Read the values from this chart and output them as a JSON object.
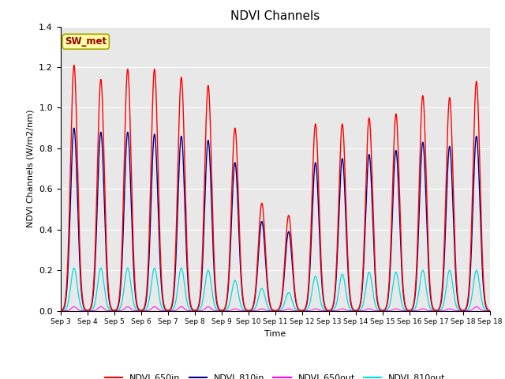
{
  "title": "NDVI Channels",
  "xlabel": "Time",
  "ylabel": "NDVI Channels (W/m2/nm)",
  "ylim": [
    0.0,
    1.4
  ],
  "annotation_text": "SW_met",
  "annotation_bg": "#FFFFAA",
  "annotation_text_color": "#990000",
  "bg_color": "#E8E8E8",
  "lines": {
    "NDVI_650in": {
      "color": "#FF0000",
      "lw": 1.0
    },
    "NDVI_810in": {
      "color": "#00008B",
      "lw": 1.0
    },
    "NDVI_650out": {
      "color": "#FF00FF",
      "lw": 0.7
    },
    "NDVI_810out": {
      "color": "#00DDDD",
      "lw": 0.9
    }
  },
  "day_peaks_650in": [
    1.21,
    1.14,
    1.19,
    1.19,
    1.15,
    1.11,
    0.9,
    0.53,
    0.47,
    0.92,
    0.92,
    0.95,
    0.97,
    1.06,
    1.05,
    1.13
  ],
  "day_peaks_810in": [
    0.9,
    0.88,
    0.88,
    0.87,
    0.86,
    0.84,
    0.73,
    0.44,
    0.39,
    0.73,
    0.75,
    0.77,
    0.79,
    0.83,
    0.81,
    0.86
  ],
  "day_peaks_650out": [
    0.02,
    0.02,
    0.02,
    0.02,
    0.02,
    0.02,
    0.01,
    0.01,
    0.01,
    0.01,
    0.01,
    0.01,
    0.01,
    0.01,
    0.01,
    0.02
  ],
  "day_peaks_810out": [
    0.21,
    0.21,
    0.21,
    0.21,
    0.21,
    0.2,
    0.15,
    0.11,
    0.09,
    0.17,
    0.18,
    0.19,
    0.19,
    0.2,
    0.2,
    0.2
  ],
  "xtick_labels": [
    "Sep 3",
    "Sep 4",
    "Sep 5",
    "Sep 6",
    "Sep 7",
    "Sep 8",
    "Sep 9",
    "Sep 10",
    "Sep 11",
    "Sep 12",
    "Sep 13",
    "Sep 14",
    "Sep 15",
    "Sep 16",
    "Sep 17",
    "Sep 18"
  ],
  "figsize": [
    6.4,
    4.8
  ],
  "dpi": 100
}
